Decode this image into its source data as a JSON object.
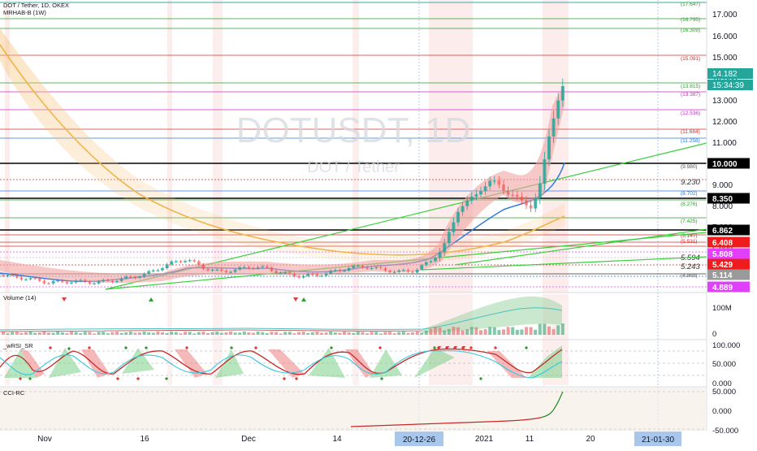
{
  "header": {
    "symbol": "DOT / Tether, 1D, OKEX",
    "indicator": "MRHAB-B (1W)"
  },
  "watermark": {
    "symbol": "DOTUSDT, 1D",
    "name": "DOT / Tether"
  },
  "panes": {
    "volume_label": "Volume (14)",
    "rsi_label": "_wRSI_SR",
    "cci_label": "CCI-RC"
  },
  "price_axis": {
    "ticks": [
      "17.000",
      "16.000",
      "15.000",
      "14.000",
      "13.000",
      "12.000",
      "11.000",
      "10.000",
      "9.000",
      "8.000",
      "7.000",
      "6.000"
    ],
    "price_badge": "14.182",
    "timer_badge": "15:34:39"
  },
  "level_labels": [
    {
      "text": "(17.647)",
      "color": "#2e9e2e"
    },
    {
      "text": "(16.795)",
      "color": "#2e9e2e"
    },
    {
      "text": "(16.309)",
      "color": "#2e9e2e"
    },
    {
      "text": "(15.091)",
      "color": "#d03030"
    },
    {
      "text": "(13.815)",
      "color": "#2e9e2e"
    },
    {
      "text": "(13.387)",
      "color": "#cc2ccc"
    },
    {
      "text": "(12.536)",
      "color": "#cc2ccc"
    },
    {
      "text": "(11.684)",
      "color": "#d03030"
    },
    {
      "text": "(11.258)",
      "color": "#2a7bd8"
    },
    {
      "text": "(9.980)",
      "color": "#555555"
    },
    {
      "text": "(8.702)",
      "color": "#2a7bd8"
    },
    {
      "text": "(8.276)",
      "color": "#2e9e2e"
    },
    {
      "text": "(7.425)",
      "color": "#2e9e2e"
    },
    {
      "text": "(6.147)",
      "color": "#d03030"
    },
    {
      "text": "(5.531)",
      "color": "#d03030"
    },
    {
      "text": "(4.869)",
      "color": "#555555"
    }
  ],
  "plain_labels": [
    "9.230",
    "5.594",
    "5.243"
  ],
  "badges": [
    {
      "text": "10.000",
      "bg": "#000000"
    },
    {
      "text": "8.350",
      "bg": "#000000"
    },
    {
      "text": "6.862",
      "bg": "#000000"
    },
    {
      "text": "6.408",
      "bg": "#ee1c1c"
    },
    {
      "text": "5.808",
      "bg": "#e040fb"
    },
    {
      "text": "5.429",
      "bg": "#ee1c1c"
    },
    {
      "text": "5.114",
      "bg": "#9a9a9a"
    },
    {
      "text": "4.889",
      "bg": "#e040fb"
    }
  ],
  "volume_axis": [
    "100M",
    "0"
  ],
  "rsi_axis": [
    "100.000",
    "50.000",
    "0.000"
  ],
  "cci_axis": [
    "50.000",
    "0.000",
    "-50.000"
  ],
  "time_axis": [
    "Nov",
    "16",
    "Dec",
    "14",
    "2021",
    "11",
    "20"
  ],
  "time_badges": [
    "20-12-26",
    "21-01-30"
  ],
  "colors": {
    "up": "#26a69a",
    "down": "#ef5350",
    "accent": "#2196f3"
  }
}
